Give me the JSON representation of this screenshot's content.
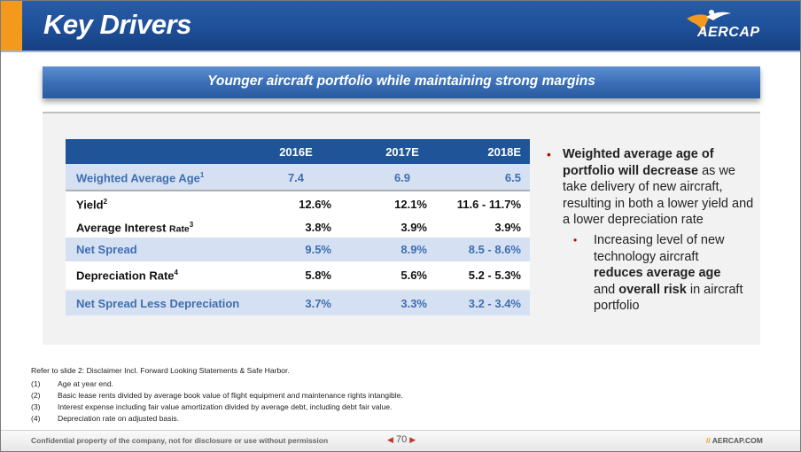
{
  "header": {
    "title": "Key Drivers",
    "logo_text": "AERCAP"
  },
  "banner": {
    "text": "Younger aircraft portfolio while maintaining strong margins"
  },
  "table": {
    "columns": [
      "",
      "2016E",
      "2017E",
      "2018E"
    ],
    "rows": [
      {
        "label": "Weighted Average Age",
        "sup": "1",
        "v2016": "7.4",
        "v2017": "6.9",
        "v2018": "6.5"
      },
      {
        "label": "Yield",
        "sup": "2",
        "v2016": "12.6%",
        "v2017": "12.1%",
        "v2018": "11.6 - 11.7%"
      },
      {
        "label": "Average Interest ",
        "label_small": "Rate",
        "sup": "3",
        "v2016": "3.8%",
        "v2017": "3.9%",
        "v2018": "3.9%"
      },
      {
        "label": "Net Spread",
        "sup": "",
        "v2016": "9.5%",
        "v2017": "8.9%",
        "v2018": "8.5 - 8.6%"
      },
      {
        "label": "Depreciation Rate",
        "sup": "4",
        "v2016": "5.8%",
        "v2017": "5.6%",
        "v2018": "5.2 - 5.3%"
      },
      {
        "label": "Net Spread Less Depreciation",
        "sup": "",
        "v2016": "3.7%",
        "v2017": "3.3%",
        "v2018": "3.2 - 3.4%"
      }
    ]
  },
  "bullets": {
    "b1_bold": "Weighted average age of portfolio will decrease",
    "b1_rest": " as we take delivery of new aircraft, resulting in both a lower yield and a lower depreciation rate",
    "b2_a": "Increasing level of new technology aircraft ",
    "b2_bold1": "reduces average age",
    "b2_b": " and ",
    "b2_bold2": "overall risk",
    "b2_c": " in aircraft portfolio"
  },
  "notes": {
    "intro": "Refer to slide 2: Disclaimer Incl. Forward Looking Statements & Safe Harbor.",
    "items": [
      {
        "num": "(1)",
        "text": "Age at year end."
      },
      {
        "num": "(2)",
        "text": "Basic lease rents divided by average book value of flight equipment and maintenance rights intangible."
      },
      {
        "num": "(3)",
        "text": "Interest expense including fair value amortization divided by average debt, including debt fair value."
      },
      {
        "num": "(4)",
        "text": "Depreciation rate on adjusted basis."
      }
    ]
  },
  "footer": {
    "confidential": "Confidential property of the company, not for disclosure or use without permission",
    "page": "70",
    "site": "AERCAP.COM"
  },
  "colors": {
    "header_blue": "#1e4f99",
    "accent_orange": "#f39a1e",
    "shade_blue": "#d5e1f2",
    "bullet_red": "#c00000"
  }
}
